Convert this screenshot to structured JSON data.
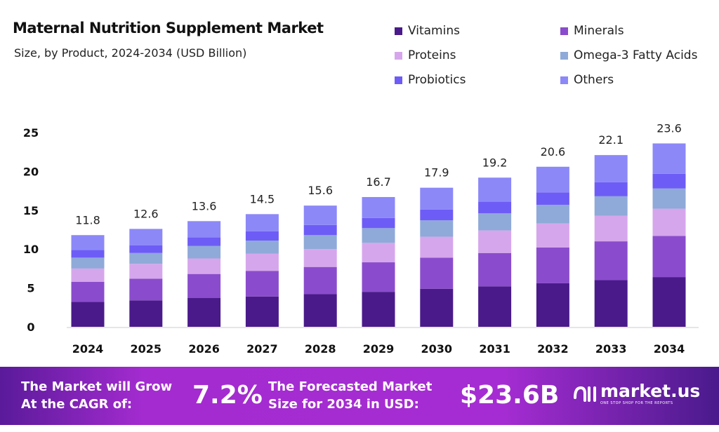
{
  "chart_data": {
    "type": "bar",
    "stacked": true,
    "title": "Maternal Nutrition Supplement Market",
    "subtitle": "Size, by Product, 2024-2034 (USD Billion)",
    "categories": [
      "2024",
      "2025",
      "2026",
      "2027",
      "2028",
      "2029",
      "2030",
      "2031",
      "2032",
      "2033",
      "2034"
    ],
    "totals": [
      "11.8",
      "12.6",
      "13.6",
      "14.5",
      "15.6",
      "16.7",
      "17.9",
      "19.2",
      "20.6",
      "22.1",
      "23.6"
    ],
    "series": [
      {
        "name": "Vitamins",
        "color": "#4a1a8a",
        "values": [
          3.2,
          3.4,
          3.7,
          3.9,
          4.2,
          4.5,
          4.9,
          5.2,
          5.6,
          6.0,
          6.4
        ]
      },
      {
        "name": "Minerals",
        "color": "#8a4ccc",
        "values": [
          2.6,
          2.8,
          3.1,
          3.3,
          3.5,
          3.8,
          4.0,
          4.3,
          4.6,
          5.0,
          5.3
        ]
      },
      {
        "name": "Proteins",
        "color": "#d6a6ec",
        "values": [
          1.7,
          1.9,
          2.0,
          2.2,
          2.3,
          2.5,
          2.7,
          2.9,
          3.1,
          3.3,
          3.5
        ]
      },
      {
        "name": "Omega-3 Fatty Acids",
        "color": "#8faad8",
        "values": [
          1.4,
          1.4,
          1.6,
          1.7,
          1.8,
          1.9,
          2.1,
          2.2,
          2.4,
          2.5,
          2.6
        ]
      },
      {
        "name": "Probiotics",
        "color": "#6e5cf6",
        "values": [
          1.0,
          1.0,
          1.1,
          1.2,
          1.3,
          1.3,
          1.4,
          1.5,
          1.6,
          1.8,
          1.9
        ]
      },
      {
        "name": "Others",
        "color": "#8c88f8",
        "values": [
          1.9,
          2.1,
          2.1,
          2.2,
          2.5,
          2.7,
          2.8,
          3.1,
          3.3,
          3.5,
          3.9
        ]
      }
    ],
    "yticks": [
      "0",
      "5",
      "10",
      "15",
      "20",
      "25"
    ],
    "ylim": [
      0,
      25
    ],
    "grid": false,
    "legend": "top-right"
  },
  "footer": {
    "cagr_label_1": "The Market will Grow",
    "cagr_label_2": "At the CAGR of:",
    "cagr": "7.2%",
    "forecast_label_1": "The Forecasted Market",
    "forecast_label_2": "Size for 2034 in USD:",
    "forecast": "$23.6B",
    "logo": "market.us",
    "tagline": "ONE STOP SHOP FOR THE REPORTS"
  }
}
